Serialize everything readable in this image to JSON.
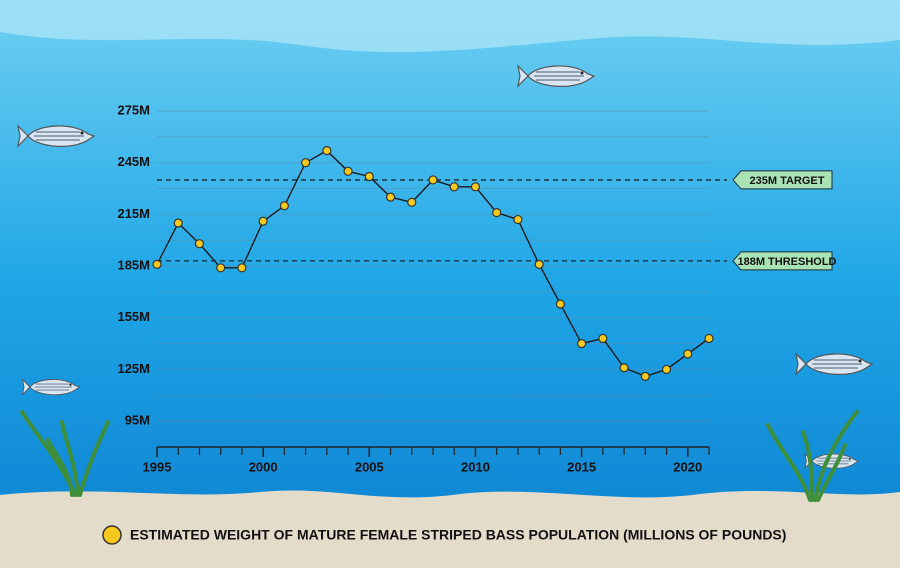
{
  "chart_data": {
    "type": "line",
    "x": [
      1995,
      1996,
      1997,
      1998,
      1999,
      2000,
      2001,
      2002,
      2003,
      2004,
      2005,
      2006,
      2007,
      2008,
      2009,
      2010,
      2011,
      2012,
      2013,
      2014,
      2015,
      2016,
      2017,
      2018,
      2019,
      2020,
      2021
    ],
    "series": [
      {
        "name": "ESTIMATED WEIGHT OF MATURE FEMALE STRIPED BASS POPULATION (MILLIONS OF POUNDS)",
        "color": "#f7c81e",
        "values": [
          186,
          210,
          198,
          184,
          184,
          211,
          220,
          245,
          252,
          240,
          237,
          225,
          222,
          235,
          231,
          231,
          216,
          212,
          186,
          163,
          140,
          143,
          126,
          121,
          125,
          134,
          143
        ]
      }
    ],
    "xlim": [
      1995,
      2021
    ],
    "xticks": [
      1995,
      2000,
      2005,
      2010,
      2015,
      2020
    ],
    "minor_xticks": [
      1996,
      1997,
      1998,
      1999,
      2001,
      2002,
      2003,
      2004,
      2006,
      2007,
      2008,
      2009,
      2011,
      2012,
      2013,
      2014,
      2016,
      2017,
      2018,
      2019,
      2021
    ],
    "ylim": [
      80,
      275
    ],
    "yticks": [
      {
        "value": 95,
        "label": "95M"
      },
      {
        "value": 125,
        "label": "125M"
      },
      {
        "value": 155,
        "label": "155M"
      },
      {
        "value": 185,
        "label": "185M"
      },
      {
        "value": 215,
        "label": "215M"
      },
      {
        "value": 245,
        "label": "245M"
      },
      {
        "value": 275,
        "label": "275M"
      }
    ],
    "minor_yticks": [
      110,
      140,
      170,
      200,
      230,
      260
    ],
    "grid": true,
    "reference_lines": [
      {
        "value": 235,
        "label": "235M TARGET"
      },
      {
        "value": 188,
        "label": "188M THRESHOLD"
      }
    ]
  }
}
